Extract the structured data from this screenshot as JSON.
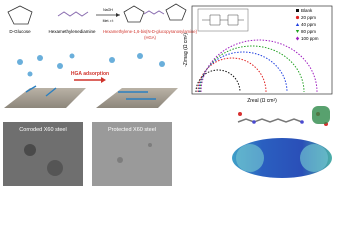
{
  "scheme": {
    "reactant_1": "D-Glucose",
    "reactant_2": "Hexamethylenediamine",
    "reagent": "NaOH",
    "conditions": "Met. r.t",
    "product": "Hexamethylene-1,6-bis(N-D-glucopyranosylamine)",
    "product_abbr": "(HGA)"
  },
  "adsorption": {
    "label": "HGA adsorption"
  },
  "micrographs": [
    "Corroded X60 steel",
    "Protected X60 steel"
  ],
  "nyquist": {
    "x_label": "Zreal (Ω cm²)",
    "y_label": "-Zimag (Ω cm²)",
    "legend": [
      "Blank",
      "20 ppm",
      "40 ppm",
      "80 ppm",
      "100 ppm"
    ]
  }
}
